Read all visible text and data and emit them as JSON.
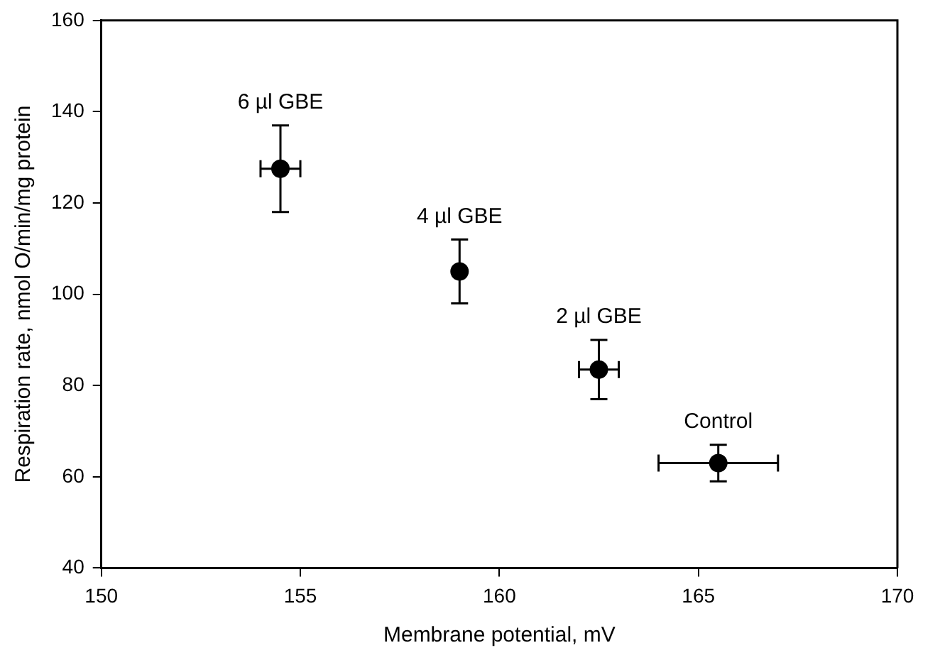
{
  "chart_data": {
    "type": "scatter",
    "xlabel": "Membrane potential, mV",
    "ylabel": "Respiration rate, nmol O/min/mg protein",
    "series": [
      {
        "color": "#000000",
        "x": [
          154.5,
          159.0,
          162.5,
          165.5
        ],
        "values": [
          127.5,
          105,
          83.5,
          63
        ],
        "errors": [
          9.5,
          7,
          6.5,
          4
        ],
        "xerrors": [
          0.5,
          null,
          0.5,
          1.5
        ]
      }
    ],
    "annotations": [
      {
        "text": "6 µl GBE",
        "x": 154.5,
        "y": 127.5
      },
      {
        "text": "4 µl GBE",
        "x": 159.0,
        "y": 105
      },
      {
        "text": "2 µl GBE",
        "x": 162.5,
        "y": 83.5
      },
      {
        "text": "Control",
        "x": 165.5,
        "y": 63
      }
    ],
    "xlim": [
      150,
      170
    ],
    "xticks": [
      150,
      155,
      160,
      165,
      170
    ],
    "ylim": [
      40,
      160
    ],
    "yticks": [
      40,
      60,
      80,
      100,
      120,
      140,
      160
    ],
    "grid": false,
    "legend": false,
    "marker": "circle"
  }
}
